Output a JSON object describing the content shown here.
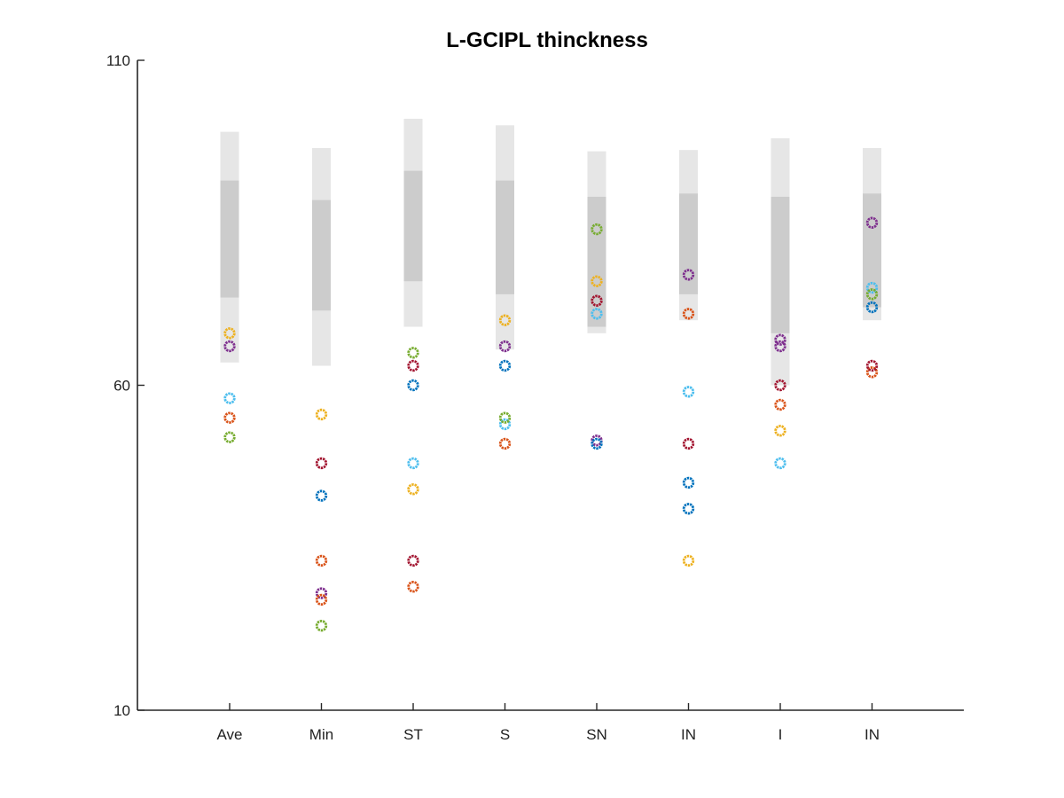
{
  "chart_data": {
    "type": "scatter",
    "title": "L-GCIPL thinckness",
    "xlabel": "",
    "ylabel": "",
    "categories": [
      "Ave",
      "Min",
      "ST",
      "S",
      "SN",
      "IN",
      "I",
      "IN"
    ],
    "ylim": [
      10,
      110
    ],
    "yticks": [
      10,
      60,
      110
    ],
    "grid": false,
    "normative_bands": {
      "outer_color": "#e6e6e6",
      "inner_color": "#cccccc",
      "outer": [
        [
          63.5,
          99
        ],
        [
          63,
          96.5
        ],
        [
          69,
          101
        ],
        [
          65.5,
          100
        ],
        [
          68,
          96
        ],
        [
          70,
          96.2
        ],
        [
          60,
          98
        ],
        [
          70,
          96.5
        ]
      ],
      "inner": [
        [
          73.5,
          91.5
        ],
        [
          71.5,
          88.5
        ],
        [
          76,
          93
        ],
        [
          74,
          91.5
        ],
        [
          69,
          89
        ],
        [
          74,
          89.5
        ],
        [
          68,
          89
        ],
        [
          72,
          89.5
        ]
      ]
    },
    "series": [
      {
        "color": "#edb120",
        "values": [
          68,
          55.5,
          44,
          70,
          76,
          null,
          53,
          null
        ]
      },
      {
        "color": "#7e2f8e",
        "values": [
          66,
          28,
          null,
          66,
          51.5,
          77,
          66,
          85
        ]
      },
      {
        "color": "#4dbeee",
        "values": [
          58,
          null,
          48,
          54,
          71,
          59,
          48,
          75
        ]
      },
      {
        "color": "#d95319",
        "values": [
          55,
          27,
          29,
          51,
          null,
          71,
          57,
          62
        ]
      },
      {
        "color": "#77ac30",
        "values": [
          52,
          23,
          65,
          55,
          84,
          null,
          null,
          74
        ]
      },
      {
        "color": "#a2142f",
        "values": [
          null,
          48,
          63,
          null,
          73,
          51,
          60,
          63
        ]
      },
      {
        "color": "#0072bd",
        "values": [
          null,
          43,
          60,
          63,
          51,
          45,
          null,
          72
        ]
      },
      {
        "color": "#a2142f",
        "values": [
          null,
          null,
          33,
          null,
          null,
          null,
          null,
          null
        ]
      },
      {
        "color": "#0072bd",
        "values": [
          null,
          null,
          null,
          null,
          null,
          41,
          null,
          null
        ]
      },
      {
        "color": "#d95319",
        "values": [
          null,
          33,
          null,
          null,
          null,
          null,
          null,
          null
        ]
      },
      {
        "color": "#edb120",
        "values": [
          null,
          null,
          null,
          null,
          null,
          33,
          null,
          null
        ]
      },
      {
        "color": "#7e2f8e",
        "values": [
          null,
          null,
          null,
          null,
          null,
          null,
          67,
          null
        ]
      }
    ]
  }
}
